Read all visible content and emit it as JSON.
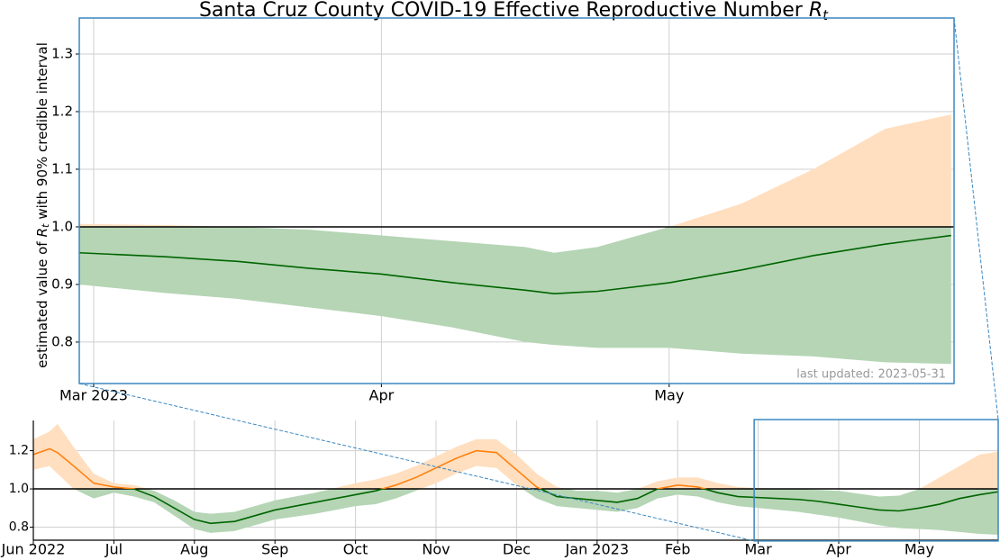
{
  "chart_data": [
    {
      "type": "line",
      "title": "Santa Cruz County COVID-19 Effective Reproductive Number",
      "title_symbol": {
        "base": "R",
        "subscript": "t"
      },
      "ylabel": {
        "before": "estimated value of",
        "symbol": "R",
        "subscript": "t",
        "after": "with 90% credible interval"
      },
      "annotation": "last updated: 2023-05-31",
      "x": [
        8.95,
        9.25,
        9.5,
        9.75,
        10,
        10.25,
        10.5,
        10.6,
        10.75,
        11,
        11.25,
        11.5,
        11.75,
        11.98
      ],
      "values": [
        0.955,
        0.948,
        0.94,
        0.928,
        0.918,
        0.903,
        0.89,
        0.884,
        0.888,
        0.903,
        0.925,
        0.95,
        0.97,
        0.985
      ],
      "lower": [
        0.9,
        0.885,
        0.875,
        0.86,
        0.845,
        0.825,
        0.8,
        0.795,
        0.79,
        0.79,
        0.78,
        0.775,
        0.765,
        0.762
      ],
      "upper": [
        1.005,
        1.003,
        1.0,
        0.995,
        0.985,
        0.975,
        0.965,
        0.955,
        0.965,
        1.0,
        1.04,
        1.1,
        1.17,
        1.195
      ],
      "reference_line": 1,
      "color_above": "#ff7f0e",
      "color_below": "#006400",
      "band_above": "#ffdfbf",
      "band_below": "#b5d5b5",
      "xlim": [
        8.95,
        11.99
      ],
      "xticks": [
        {
          "value": 9,
          "label": "Mar 2023"
        },
        {
          "value": 10,
          "label": "Apr"
        },
        {
          "value": 11,
          "label": "May"
        }
      ],
      "ylim": [
        0.728,
        1.3625
      ],
      "yticks": [
        0.8,
        0.9,
        {
          "value": 1,
          "label": "1.0"
        },
        1.1,
        1.2,
        1.3
      ],
      "grid": true
    },
    {
      "type": "line",
      "x": [
        0,
        0.2,
        0.3,
        0.5,
        0.75,
        1,
        1.25,
        1.5,
        1.75,
        2,
        2.2,
        2.5,
        2.75,
        3,
        3.5,
        4,
        4.25,
        4.5,
        4.75,
        5,
        5.25,
        5.5,
        5.75,
        6,
        6.25,
        6.5,
        6.75,
        7,
        7.25,
        7.5,
        7.75,
        8,
        8.25,
        8.5,
        8.75,
        9,
        9.25,
        9.5,
        9.75,
        10,
        10.25,
        10.5,
        10.75,
        11,
        11.25,
        11.5,
        11.75,
        11.98
      ],
      "values": [
        1.18,
        1.21,
        1.19,
        1.12,
        1.03,
        1.01,
        1.0,
        0.96,
        0.9,
        0.84,
        0.82,
        0.83,
        0.86,
        0.89,
        0.93,
        0.97,
        0.99,
        1.02,
        1.06,
        1.11,
        1.16,
        1.2,
        1.19,
        1.1,
        1.01,
        0.96,
        0.95,
        0.94,
        0.93,
        0.95,
        1.0,
        1.02,
        1.01,
        0.98,
        0.96,
        0.955,
        0.95,
        0.945,
        0.935,
        0.92,
        0.905,
        0.89,
        0.885,
        0.9,
        0.92,
        0.95,
        0.97,
        0.985
      ],
      "lower": [
        1.1,
        1.12,
        1.08,
        1.0,
        0.95,
        0.98,
        0.96,
        0.93,
        0.86,
        0.79,
        0.77,
        0.78,
        0.81,
        0.84,
        0.87,
        0.91,
        0.92,
        0.95,
        0.99,
        1.03,
        1.08,
        1.12,
        1.11,
        1.02,
        0.95,
        0.91,
        0.9,
        0.89,
        0.88,
        0.9,
        0.95,
        0.97,
        0.96,
        0.93,
        0.91,
        0.9,
        0.89,
        0.88,
        0.865,
        0.85,
        0.83,
        0.81,
        0.795,
        0.79,
        0.785,
        0.775,
        0.765,
        0.76
      ],
      "upper": [
        1.26,
        1.3,
        1.34,
        1.22,
        1.08,
        1.03,
        1.02,
        0.99,
        0.94,
        0.88,
        0.87,
        0.88,
        0.91,
        0.94,
        0.98,
        1.03,
        1.05,
        1.08,
        1.12,
        1.17,
        1.22,
        1.26,
        1.26,
        1.18,
        1.08,
        1.01,
        0.99,
        0.99,
        0.98,
        1.0,
        1.04,
        1.06,
        1.06,
        1.03,
        1.01,
        1.005,
        1.0,
        1.0,
        0.995,
        0.99,
        0.975,
        0.96,
        0.965,
        1.0,
        1.06,
        1.12,
        1.18,
        1.195
      ],
      "reference_line": 1,
      "color_above": "#ff7f0e",
      "color_below": "#006400",
      "band_above": "#ffdfbf",
      "band_below": "#b5d5b5",
      "xlim": [
        0,
        11.98
      ],
      "xticks": [
        {
          "value": 0,
          "label": "Jun 2022"
        },
        {
          "value": 1,
          "label": "Jul"
        },
        {
          "value": 2,
          "label": "Aug"
        },
        {
          "value": 3,
          "label": "Sep"
        },
        {
          "value": 4,
          "label": "Oct"
        },
        {
          "value": 5,
          "label": "Nov"
        },
        {
          "value": 6,
          "label": "Dec"
        },
        {
          "value": 7,
          "label": "Jan 2023"
        },
        {
          "value": 8,
          "label": "Feb"
        },
        {
          "value": 9,
          "label": "Mar"
        },
        {
          "value": 10,
          "label": "Apr"
        },
        {
          "value": 11,
          "label": "May"
        }
      ],
      "ylim": [
        0.732,
        1.358
      ],
      "yticks": [
        0.8,
        {
          "value": 1,
          "label": "1.0"
        },
        1.2
      ],
      "grid": true
    }
  ]
}
